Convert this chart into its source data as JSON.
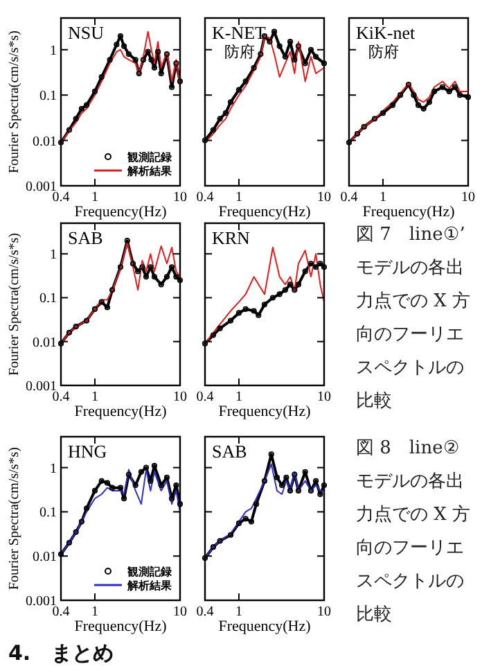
{
  "chart_data": [
    {
      "type": "line",
      "title": "NSU",
      "xlabel": "Frequency(Hz)",
      "ylabel": "Fourier Spectra(cm/s/s*s)",
      "log": "xy",
      "xlim": [
        0.4,
        10
      ],
      "ylim": [
        0.001,
        5
      ],
      "xticks": [
        0.4,
        1,
        10
      ],
      "yticks": [
        0.001,
        0.01,
        0.1,
        1
      ],
      "legend": "bottom right",
      "series": [
        {
          "name": "観測記録",
          "color": "#000000",
          "marker": "circle",
          "x": [
            0.4,
            0.5,
            0.6,
            0.7,
            0.8,
            1,
            1.2,
            1.5,
            1.8,
            2,
            2.2,
            2.5,
            3,
            3.3,
            3.7,
            4.2,
            4.6,
            5,
            5.5,
            6,
            7,
            8,
            9,
            10
          ],
          "values": [
            0.009,
            0.017,
            0.03,
            0.05,
            0.06,
            0.12,
            0.25,
            0.6,
            1.3,
            2,
            1.2,
            0.8,
            0.6,
            0.3,
            0.6,
            0.9,
            0.6,
            0.4,
            0.9,
            0.3,
            0.8,
            0.15,
            0.5,
            0.2
          ]
        },
        {
          "name": "解析結果",
          "color": "#e02020",
          "x": [
            0.4,
            0.5,
            0.6,
            0.7,
            0.8,
            1,
            1.2,
            1.5,
            1.8,
            2,
            2.2,
            2.5,
            3,
            3.3,
            3.7,
            4.2,
            4.6,
            5,
            5.5,
            6,
            7,
            8,
            9,
            10
          ],
          "values": [
            0.009,
            0.016,
            0.025,
            0.04,
            0.05,
            0.1,
            0.2,
            0.5,
            0.9,
            1,
            0.7,
            0.6,
            0.5,
            0.3,
            0.7,
            2.5,
            1,
            0.5,
            1.5,
            0.4,
            0.9,
            0.2,
            0.6,
            0.15
          ]
        }
      ]
    },
    {
      "type": "line",
      "title": "K-NET",
      "subtitle": "防府",
      "xlabel": "Frequency(Hz)",
      "log": "xy",
      "xlim": [
        0.4,
        10
      ],
      "ylim": [
        0.001,
        5
      ],
      "xticks": [
        0.4,
        1,
        10
      ],
      "yticks": [
        0.001,
        0.01,
        0.1,
        1
      ],
      "tick_labels": "x",
      "series": [
        {
          "color": "#000000",
          "marker": "circle",
          "x": [
            0.4,
            0.5,
            0.6,
            0.7,
            0.8,
            1,
            1.2,
            1.5,
            1.8,
            2,
            2.3,
            2.6,
            3,
            3.5,
            4,
            4.5,
            5,
            6,
            7,
            8,
            10
          ],
          "values": [
            0.01,
            0.017,
            0.03,
            0.04,
            0.07,
            0.13,
            0.2,
            0.4,
            0.8,
            2,
            1.5,
            2.5,
            1.2,
            0.7,
            1.5,
            0.6,
            1.2,
            0.5,
            1,
            0.7,
            0.5
          ]
        },
        {
          "color": "#e02020",
          "x": [
            0.4,
            0.5,
            0.6,
            0.7,
            0.8,
            1,
            1.2,
            1.5,
            1.8,
            2,
            2.3,
            2.6,
            3,
            3.5,
            4,
            4.5,
            5,
            6,
            7,
            8,
            10
          ],
          "values": [
            0.009,
            0.014,
            0.022,
            0.03,
            0.05,
            0.1,
            0.16,
            0.35,
            0.7,
            2,
            1.8,
            0.8,
            0.25,
            0.5,
            0.9,
            0.3,
            1.5,
            0.2,
            0.7,
            0.3,
            0.4
          ]
        }
      ]
    },
    {
      "type": "line",
      "title": "KiK-net",
      "subtitle": "防府",
      "xlabel": "Frequency(Hz)",
      "log": "xy",
      "xlim": [
        0.4,
        10
      ],
      "ylim": [
        0.001,
        5
      ],
      "xticks": [
        0.4,
        1,
        10
      ],
      "yticks": [
        0.001,
        0.01,
        0.1,
        1
      ],
      "tick_labels": "x",
      "series": [
        {
          "color": "#000000",
          "marker": "circle",
          "x": [
            0.4,
            0.5,
            0.6,
            0.8,
            1,
            1.3,
            1.6,
            2,
            2.3,
            2.6,
            3,
            3.5,
            4,
            5,
            6,
            7,
            8,
            10
          ],
          "values": [
            0.009,
            0.014,
            0.02,
            0.03,
            0.04,
            0.06,
            0.1,
            0.17,
            0.1,
            0.06,
            0.05,
            0.07,
            0.12,
            0.15,
            0.12,
            0.15,
            0.1,
            0.09
          ]
        },
        {
          "color": "#e02020",
          "x": [
            0.4,
            0.5,
            0.6,
            0.8,
            1,
            1.3,
            1.6,
            2,
            2.3,
            2.6,
            3,
            3.5,
            4,
            5,
            6,
            7,
            8,
            10
          ],
          "values": [
            0.009,
            0.014,
            0.02,
            0.03,
            0.045,
            0.07,
            0.11,
            0.18,
            0.12,
            0.08,
            0.07,
            0.09,
            0.15,
            0.2,
            0.14,
            0.2,
            0.12,
            0.12
          ]
        }
      ]
    },
    {
      "type": "line",
      "title": "SAB",
      "xlabel": "Frequency(Hz)",
      "ylabel": "Fourier Spectra(cm/s/s*s)",
      "log": "xy",
      "xlim": [
        0.4,
        10
      ],
      "ylim": [
        0.001,
        5
      ],
      "xticks": [
        0.4,
        1,
        10
      ],
      "yticks": [
        0.001,
        0.01,
        0.1,
        1
      ],
      "series": [
        {
          "color": "#000000",
          "marker": "circle",
          "x": [
            0.4,
            0.5,
            0.6,
            0.8,
            1,
            1.2,
            1.4,
            1.6,
            2,
            2.4,
            2.8,
            3.2,
            3.6,
            4,
            4.5,
            5,
            6,
            7,
            8,
            9,
            10
          ],
          "values": [
            0.009,
            0.016,
            0.022,
            0.03,
            0.055,
            0.08,
            0.06,
            0.15,
            0.5,
            2,
            0.6,
            0.4,
            0.5,
            0.3,
            0.5,
            0.3,
            0.2,
            0.3,
            0.5,
            0.3,
            0.25
          ]
        },
        {
          "color": "#e02020",
          "x": [
            0.4,
            0.5,
            0.6,
            0.8,
            1,
            1.2,
            1.4,
            1.6,
            2,
            2.4,
            2.8,
            3.2,
            3.6,
            4,
            4.5,
            5,
            6,
            7,
            8,
            9,
            10
          ],
          "values": [
            0.009,
            0.016,
            0.022,
            0.03,
            0.055,
            0.09,
            0.09,
            0.15,
            0.45,
            1.8,
            0.5,
            0.15,
            0.7,
            0.4,
            1,
            0.4,
            1.5,
            0.6,
            1.4,
            0.4,
            0.3
          ]
        }
      ]
    },
    {
      "type": "line",
      "title": "KRN",
      "xlabel": "Frequency(Hz)",
      "log": "xy",
      "xlim": [
        0.4,
        10
      ],
      "ylim": [
        0.001,
        5
      ],
      "xticks": [
        0.4,
        1,
        10
      ],
      "yticks": [
        0.001,
        0.01,
        0.1,
        1
      ],
      "tick_labels": "x",
      "annotations": [
        "図 7　line①’ モデルの各出力点での X 方向のフーリエスペクトルの比較"
      ],
      "series": [
        {
          "color": "#000000",
          "marker": "circle",
          "x": [
            0.4,
            0.5,
            0.6,
            0.8,
            1,
            1.2,
            1.5,
            1.7,
            2,
            2.5,
            3,
            3.5,
            4,
            4.5,
            5,
            6,
            7,
            8,
            9,
            10
          ],
          "values": [
            0.009,
            0.014,
            0.02,
            0.03,
            0.045,
            0.055,
            0.05,
            0.04,
            0.07,
            0.1,
            0.12,
            0.15,
            0.2,
            0.15,
            0.2,
            0.4,
            0.6,
            0.5,
            0.6,
            0.5
          ]
        },
        {
          "color": "#e02020",
          "x": [
            0.4,
            0.5,
            0.6,
            0.8,
            1,
            1.2,
            1.5,
            1.7,
            2,
            2.5,
            3,
            3.5,
            4,
            4.5,
            5,
            6,
            7,
            8,
            9,
            10
          ],
          "values": [
            0.009,
            0.016,
            0.025,
            0.05,
            0.08,
            0.12,
            0.3,
            0.2,
            0.12,
            1.4,
            0.3,
            0.2,
            0.3,
            0.15,
            0.6,
            1.2,
            0.3,
            1,
            0.2,
            0.08
          ]
        }
      ]
    },
    {
      "type": "line",
      "title": "HNG",
      "xlabel": "Frequency(Hz)",
      "ylabel": "Fourier Spectra(cm/s/s*s)",
      "log": "xy",
      "xlim": [
        0.4,
        10
      ],
      "ylim": [
        0.001,
        5
      ],
      "xticks": [
        0.4,
        1,
        10
      ],
      "yticks": [
        0.001,
        0.01,
        0.1,
        1
      ],
      "legend": "bottom right",
      "series": [
        {
          "name": "観測記録",
          "color": "#000000",
          "marker": "circle",
          "x": [
            0.4,
            0.5,
            0.6,
            0.7,
            0.8,
            1,
            1.2,
            1.4,
            1.6,
            2,
            2.2,
            2.5,
            3,
            3.5,
            4,
            4.5,
            5,
            6,
            7,
            8,
            9,
            10
          ],
          "values": [
            0.011,
            0.02,
            0.035,
            0.06,
            0.12,
            0.3,
            0.5,
            0.45,
            0.35,
            0.35,
            0.2,
            0.7,
            0.4,
            0.8,
            1,
            0.5,
            1.1,
            0.4,
            0.6,
            0.2,
            0.4,
            0.15
          ]
        },
        {
          "name": "解析結果",
          "color": "#3030c0",
          "x": [
            0.4,
            0.5,
            0.6,
            0.7,
            0.8,
            1,
            1.2,
            1.4,
            1.6,
            2,
            2.2,
            2.5,
            3,
            3.5,
            4,
            4.5,
            5,
            6,
            7,
            8,
            9,
            10
          ],
          "values": [
            0.011,
            0.02,
            0.035,
            0.06,
            0.1,
            0.2,
            0.25,
            0.35,
            0.3,
            0.3,
            0.25,
            0.9,
            0.3,
            0.15,
            0.9,
            0.3,
            0.8,
            0.3,
            0.5,
            0.15,
            0.3,
            0.1
          ]
        }
      ]
    },
    {
      "type": "line",
      "title": "SAB",
      "xlabel": "Frequency(Hz)",
      "log": "xy",
      "xlim": [
        0.4,
        10
      ],
      "ylim": [
        0.001,
        5
      ],
      "xticks": [
        0.4,
        1,
        10
      ],
      "yticks": [
        0.001,
        0.01,
        0.1,
        1
      ],
      "tick_labels": "x",
      "annotations": [
        "図 8　line② モデルの各出力点での X 方向のフーリエスペクトルの比較",
        "4.　まとめ"
      ],
      "series": [
        {
          "color": "#000000",
          "marker": "circle",
          "x": [
            0.4,
            0.5,
            0.6,
            0.8,
            1,
            1.2,
            1.4,
            1.6,
            2,
            2.4,
            2.8,
            3.2,
            3.6,
            4,
            4.5,
            5,
            6,
            7,
            8,
            9,
            10
          ],
          "values": [
            0.009,
            0.016,
            0.022,
            0.03,
            0.055,
            0.07,
            0.06,
            0.15,
            0.5,
            2,
            0.6,
            0.4,
            0.6,
            0.3,
            0.7,
            0.3,
            0.8,
            0.3,
            0.5,
            0.25,
            0.4
          ]
        },
        {
          "color": "#3030c0",
          "x": [
            0.4,
            0.5,
            0.6,
            0.8,
            1,
            1.2,
            1.4,
            1.6,
            2,
            2.4,
            2.8,
            3.2,
            3.6,
            4,
            4.5,
            5,
            6,
            7,
            8,
            9,
            10
          ],
          "values": [
            0.009,
            0.016,
            0.022,
            0.032,
            0.06,
            0.1,
            0.12,
            0.2,
            0.5,
            1.2,
            0.3,
            0.25,
            0.5,
            0.3,
            0.8,
            0.3,
            0.5,
            0.3,
            0.4,
            0.3,
            0.3
          ]
        }
      ]
    }
  ]
}
